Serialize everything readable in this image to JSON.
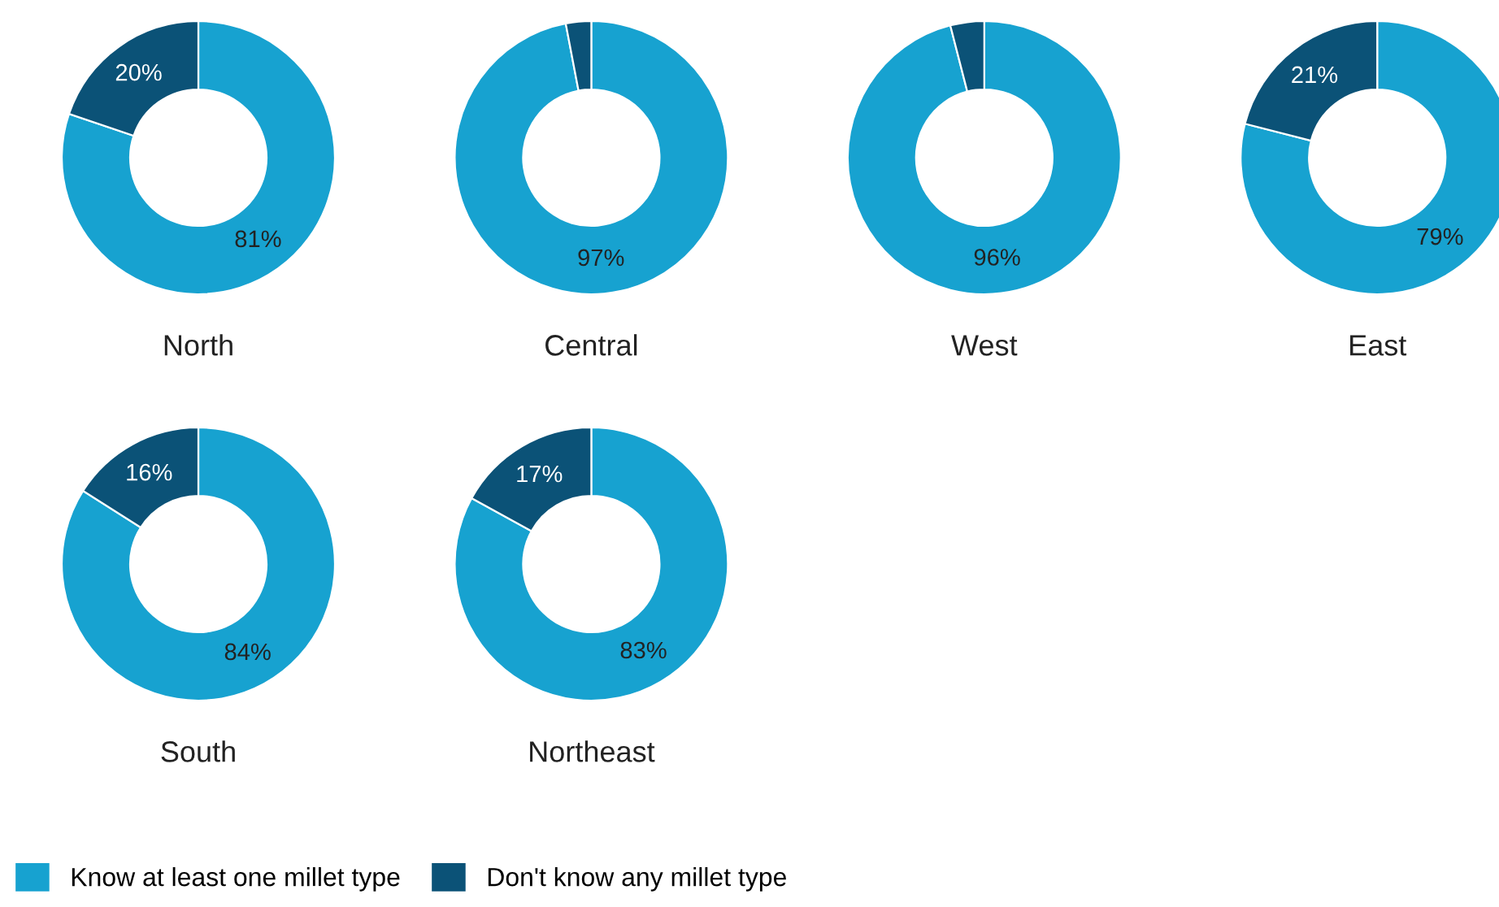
{
  "chart_data": [
    {
      "type": "donut",
      "title": "North",
      "categories": [
        "Know at least one millet type",
        "Don't know any millet type"
      ],
      "values": [
        81,
        20
      ],
      "value_labels": [
        "81%",
        "20%"
      ],
      "colors": [
        "#17a2d0",
        "#0b5277"
      ],
      "legend": "bottom"
    },
    {
      "type": "donut",
      "title": "Central",
      "categories": [
        null,
        null
      ],
      "values": [
        97,
        3
      ],
      "value_labels": [
        "97%",
        null
      ],
      "colors": [
        "#17a2d0",
        "#0b5277"
      ]
    },
    {
      "type": "donut",
      "title": "West",
      "categories": [
        null,
        null
      ],
      "values": [
        96,
        4
      ],
      "value_labels": [
        "96%",
        null
      ],
      "colors": [
        "#17a2d0",
        "#0b5277"
      ]
    },
    {
      "type": "donut",
      "title": "East",
      "categories": [
        null,
        null
      ],
      "values": [
        79,
        21
      ],
      "value_labels": [
        "79%",
        "21%"
      ],
      "colors": [
        "#17a2d0",
        "#0b5277"
      ]
    },
    {
      "type": "donut",
      "title": "South",
      "categories": [
        null,
        null
      ],
      "values": [
        84,
        16
      ],
      "value_labels": [
        "84%",
        "16%"
      ],
      "colors": [
        "#17a2d0",
        "#0b5277"
      ]
    },
    {
      "type": "donut",
      "title": "Northeast",
      "categories": [
        null,
        null
      ],
      "values": [
        83,
        17
      ],
      "value_labels": [
        "83%",
        "17%"
      ],
      "colors": [
        "#17a2d0",
        "#0b5277"
      ]
    }
  ]
}
